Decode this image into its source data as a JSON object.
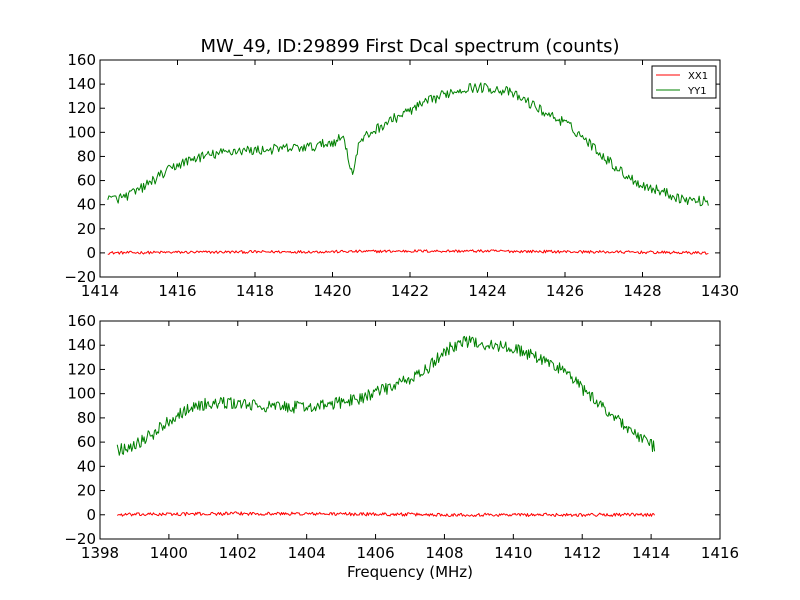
{
  "colors": {
    "xx1": "#ff0000",
    "yy1": "#008000",
    "axes": "#000000",
    "background": "#ffffff"
  },
  "chart_data": [
    {
      "type": "line",
      "title": "MW_49, ID:29899 First Dcal spectrum (counts)",
      "xlabel": "",
      "ylabel": "",
      "xlim": [
        1414,
        1430
      ],
      "ylim": [
        -20,
        160
      ],
      "xticks": [
        "1414",
        "1416",
        "1418",
        "1420",
        "1422",
        "1424",
        "1426",
        "1428",
        "1430"
      ],
      "yticks": [
        "−20",
        "0",
        "20",
        "40",
        "60",
        "80",
        "100",
        "120",
        "140",
        "160"
      ],
      "legend": {
        "placement": "top-right",
        "entries": [
          "XX1",
          "YY1"
        ]
      },
      "grid": false,
      "x_range": [
        1414.2,
        1429.7
      ],
      "series": [
        {
          "name": "XX1",
          "color": "#ff0000",
          "x": [
            1414.2,
            1416,
            1418,
            1420,
            1422,
            1424,
            1426,
            1428,
            1429.7
          ],
          "y": [
            0,
            0.5,
            0.8,
            1,
            1.5,
            1.5,
            1,
            0.5,
            0
          ]
        },
        {
          "name": "YY1",
          "color": "#008000",
          "x": [
            1414.2,
            1414.6,
            1415.0,
            1415.5,
            1416.0,
            1416.5,
            1417.0,
            1417.5,
            1418.0,
            1418.5,
            1419.0,
            1419.5,
            1420.0,
            1420.3,
            1420.5,
            1420.7,
            1421.0,
            1421.5,
            1422.0,
            1422.5,
            1423.0,
            1423.5,
            1424.0,
            1424.5,
            1425.0,
            1425.5,
            1426.0,
            1426.5,
            1427.0,
            1427.5,
            1428.0,
            1428.5,
            1429.0,
            1429.4,
            1429.7
          ],
          "y": [
            44,
            46,
            52,
            63,
            73,
            79,
            82,
            85,
            85,
            86,
            87,
            88,
            92,
            96,
            65,
            92,
            100,
            110,
            118,
            126,
            133,
            137,
            137,
            134,
            126,
            116,
            108,
            95,
            80,
            66,
            56,
            51,
            45,
            43,
            43
          ]
        }
      ]
    },
    {
      "type": "line",
      "title": "",
      "xlabel": "Frequency (MHz)",
      "ylabel": "",
      "xlim": [
        1398,
        1416
      ],
      "ylim": [
        -20,
        160
      ],
      "xticks": [
        "1398",
        "1400",
        "1402",
        "1404",
        "1406",
        "1408",
        "1410",
        "1412",
        "1414",
        "1416"
      ],
      "yticks": [
        "−20",
        "0",
        "20",
        "40",
        "60",
        "80",
        "100",
        "120",
        "140",
        "160"
      ],
      "grid": false,
      "x_range": [
        1398.5,
        1414.1
      ],
      "series": [
        {
          "name": "",
          "color": "#ff0000",
          "x": [
            1398.5,
            1400,
            1402,
            1404,
            1406,
            1408,
            1410,
            1412,
            1414.1
          ],
          "y": [
            0,
            0.5,
            1,
            0.8,
            0.5,
            0,
            0,
            0,
            0
          ]
        },
        {
          "name": "",
          "color": "#008000",
          "x": [
            1398.5,
            1399.0,
            1399.5,
            1400.0,
            1400.5,
            1401.0,
            1401.5,
            1402.0,
            1402.5,
            1403.0,
            1403.5,
            1404.0,
            1404.5,
            1405.0,
            1405.5,
            1406.0,
            1406.5,
            1407.0,
            1407.5,
            1408.0,
            1408.5,
            1409.0,
            1409.5,
            1410.0,
            1410.5,
            1411.0,
            1411.5,
            1412.0,
            1412.5,
            1413.0,
            1413.5,
            1414.1
          ],
          "y": [
            53,
            58,
            66,
            78,
            87,
            91,
            92,
            92,
            90,
            89,
            89,
            89,
            90,
            93,
            96,
            101,
            106,
            112,
            120,
            135,
            143,
            142,
            139,
            138,
            132,
            126,
            119,
            104,
            91,
            80,
            67,
            56
          ]
        }
      ]
    }
  ]
}
